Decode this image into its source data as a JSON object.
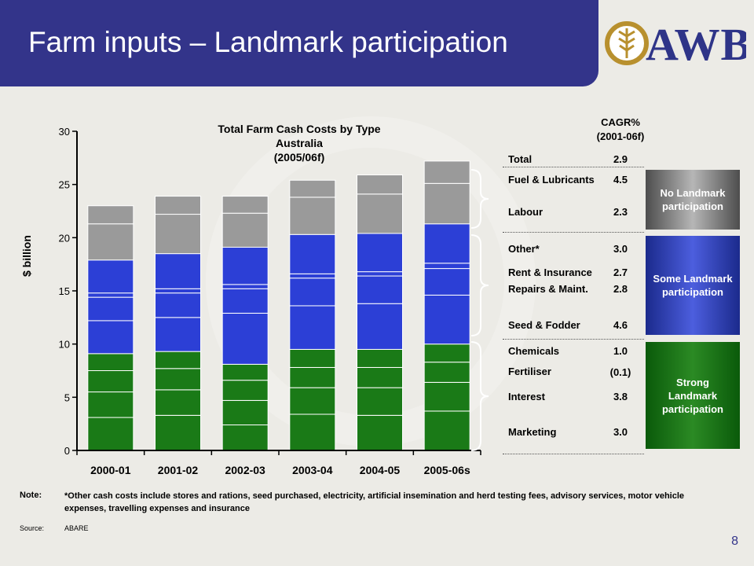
{
  "slide": {
    "title": "Farm inputs – Landmark participation",
    "logo_text": "AWB",
    "page_number": "8"
  },
  "chart_data": {
    "type": "bar",
    "stacked": true,
    "title": "Total Farm Cash Costs by Type Australia (2005/06f)",
    "title_lines": [
      "Total Farm Cash Costs by Type",
      "Australia",
      "(2005/06f)"
    ],
    "ylabel": "$ billion",
    "xlabel": "",
    "ylim": [
      0,
      30
    ],
    "yticks": [
      0,
      5,
      10,
      15,
      20,
      25,
      30
    ],
    "categories": [
      "2000-01",
      "2001-02",
      "2002-03",
      "2003-04",
      "2004-05",
      "2005-06s"
    ],
    "series": [
      {
        "name": "Marketing",
        "group": "Strong",
        "values": [
          3.1,
          3.3,
          2.4,
          3.4,
          3.3,
          3.7
        ]
      },
      {
        "name": "Interest",
        "group": "Strong",
        "values": [
          2.4,
          2.4,
          2.3,
          2.5,
          2.6,
          2.7
        ]
      },
      {
        "name": "Fertiliser",
        "group": "Strong",
        "values": [
          2.0,
          2.0,
          1.9,
          1.9,
          1.9,
          1.9
        ]
      },
      {
        "name": "Chemicals",
        "group": "Strong",
        "values": [
          1.6,
          1.6,
          1.5,
          1.7,
          1.7,
          1.7
        ]
      },
      {
        "name": "Seed & Fodder",
        "group": "Some",
        "values": [
          3.1,
          3.2,
          4.8,
          4.1,
          4.3,
          4.6
        ]
      },
      {
        "name": "Repairs & Maint.",
        "group": "Some",
        "values": [
          2.2,
          2.3,
          2.3,
          2.6,
          2.6,
          2.5
        ]
      },
      {
        "name": "Rent & Insurance",
        "group": "Some",
        "values": [
          0.4,
          0.4,
          0.4,
          0.4,
          0.4,
          0.5
        ]
      },
      {
        "name": "Other*",
        "group": "Some",
        "values": [
          3.1,
          3.3,
          3.5,
          3.7,
          3.6,
          3.7
        ]
      },
      {
        "name": "Labour",
        "group": "None",
        "values": [
          3.4,
          3.7,
          3.2,
          3.5,
          3.7,
          3.8
        ]
      },
      {
        "name": "Fuel & Lubricants",
        "group": "None",
        "values": [
          1.7,
          1.7,
          1.6,
          1.6,
          1.8,
          2.1
        ]
      }
    ],
    "group_colors": {
      "Strong": "#1a7a17",
      "Some": "#2c3fd6",
      "None": "#9a9a9a"
    }
  },
  "legend": {
    "cagr_header": [
      "CAGR%",
      "(2001-06f)"
    ],
    "rows": [
      {
        "label": "Total",
        "value": "2.9"
      },
      {
        "label": "Fuel & Lubricants",
        "value": "4.5"
      },
      {
        "label": "Labour",
        "value": "2.3"
      },
      {
        "label": "Other*",
        "value": "3.0"
      },
      {
        "label": "Rent & Insurance",
        "value": "2.7"
      },
      {
        "label": "Repairs & Maint.",
        "value": "2.8"
      },
      {
        "label": "Seed & Fodder",
        "value": "4.6"
      },
      {
        "label": "Chemicals",
        "value": "1.0"
      },
      {
        "label": "Fertiliser",
        "value": "(0.1)"
      },
      {
        "label": "Interest",
        "value": "3.8"
      },
      {
        "label": "Marketing",
        "value": "3.0"
      }
    ],
    "boxes": {
      "none": "No Landmark participation",
      "some": "Some Landmark participation",
      "strong": "Strong Landmark participation"
    }
  },
  "footer": {
    "note_tag": "Note:",
    "note_text": "*Other cash costs include stores and rations, seed purchased, electricity, artificial insemination and herd testing fees, advisory services, motor vehicle expenses, travelling expenses and insurance",
    "source_tag": "Source:",
    "source_text": "ABARE"
  }
}
